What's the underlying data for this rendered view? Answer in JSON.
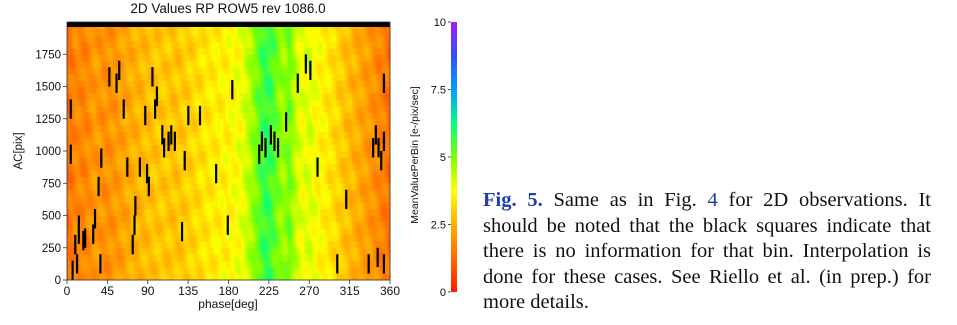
{
  "figure": {
    "title": "2D Values RP ROW5 rev 1086.0",
    "xlabel": "phase[deg]",
    "ylabel": "AC[pix]",
    "colorbar_label": "MeanValuePerBin [e-/pix/sec]"
  },
  "caption": {
    "label": "Fig. 5.",
    "text_before_ref": "Same as in Fig.",
    "ref": "4",
    "text_after_ref": "for 2D observations. It should be noted that the black squares indicate that there is no information for that bin. Interpolation is done for these cases. See Riello et al. (in prep.) for more details."
  },
  "chart_data": {
    "type": "heatmap",
    "title": "2D Values RP ROW5 rev 1086.0",
    "xlabel": "phase[deg]",
    "ylabel": "AC[pix]",
    "colorbar_label": "MeanValuePerBin [e-/pix/sec]",
    "xlim": [
      0,
      360
    ],
    "ylim": [
      0,
      2000
    ],
    "x_ticks": [
      0,
      45,
      90,
      135,
      180,
      225,
      270,
      315,
      360
    ],
    "x_tick_labels": [
      "0",
      "45",
      "90",
      "135",
      "180",
      "225",
      "270",
      "315",
      "360"
    ],
    "y_ticks": [
      0,
      250,
      500,
      750,
      1000,
      1250,
      1500,
      1750
    ],
    "y_tick_labels": [
      "0",
      "250",
      "500",
      "750",
      "1000",
      "1250",
      "1500",
      "1750"
    ],
    "colorbar_range": [
      0,
      10
    ],
    "colorbar_ticks": [
      0,
      2.5,
      5,
      7.5,
      10
    ],
    "colorbar_tick_labels": [
      "0",
      "2.5",
      "5",
      "7.5",
      "10"
    ],
    "colorscale": [
      "#ff1a00",
      "#ff6a00",
      "#ffb000",
      "#ffff00",
      "#7fff00",
      "#00ff80",
      "#00a0ff",
      "#3050ff",
      "#a020f0"
    ],
    "column_profile": [
      [
        0,
        1.3
      ],
      [
        10,
        1.8
      ],
      [
        20,
        1.7
      ],
      [
        30,
        2.1
      ],
      [
        45,
        1.9
      ],
      [
        60,
        2.2
      ],
      [
        75,
        2.5
      ],
      [
        90,
        2.7
      ],
      [
        105,
        2.9
      ],
      [
        120,
        2.8
      ],
      [
        135,
        3.0
      ],
      [
        150,
        3.3
      ],
      [
        165,
        3.5
      ],
      [
        180,
        3.6
      ],
      [
        195,
        3.9
      ],
      [
        205,
        4.6
      ],
      [
        215,
        5.4
      ],
      [
        222,
        5.8
      ],
      [
        228,
        5.6
      ],
      [
        235,
        5.0
      ],
      [
        242,
        4.7
      ],
      [
        248,
        5.2
      ],
      [
        255,
        4.3
      ],
      [
        262,
        3.9
      ],
      [
        270,
        4.1
      ],
      [
        280,
        3.7
      ],
      [
        295,
        3.3
      ],
      [
        310,
        2.8
      ],
      [
        325,
        2.4
      ],
      [
        340,
        2.0
      ],
      [
        350,
        1.7
      ],
      [
        360,
        1.4
      ]
    ],
    "missing_bins": [
      {
        "x": 3,
        "y": 900
      },
      {
        "x": 3,
        "y": 1250
      },
      {
        "x": 5,
        "y": 0
      },
      {
        "x": 8,
        "y": 200
      },
      {
        "x": 10,
        "y": 50
      },
      {
        "x": 12,
        "y": 280
      },
      {
        "x": 12,
        "y": 350
      },
      {
        "x": 17,
        "y": 230
      },
      {
        "x": 19,
        "y": 250
      },
      {
        "x": 28,
        "y": 280
      },
      {
        "x": 30,
        "y": 400
      },
      {
        "x": 34,
        "y": 650
      },
      {
        "x": 36,
        "y": 50
      },
      {
        "x": 37,
        "y": 870
      },
      {
        "x": 46,
        "y": 1500
      },
      {
        "x": 54,
        "y": 1450
      },
      {
        "x": 57,
        "y": 1550
      },
      {
        "x": 62,
        "y": 1250
      },
      {
        "x": 66,
        "y": 800
      },
      {
        "x": 72,
        "y": 200
      },
      {
        "x": 74,
        "y": 350
      },
      {
        "x": 75,
        "y": 500
      },
      {
        "x": 80,
        "y": 800
      },
      {
        "x": 86,
        "y": 1200
      },
      {
        "x": 88,
        "y": 750
      },
      {
        "x": 90,
        "y": 650
      },
      {
        "x": 94,
        "y": 1500
      },
      {
        "x": 97,
        "y": 1250
      },
      {
        "x": 99,
        "y": 1350
      },
      {
        "x": 105,
        "y": 1050
      },
      {
        "x": 107,
        "y": 950
      },
      {
        "x": 112,
        "y": 1000
      },
      {
        "x": 115,
        "y": 1050
      },
      {
        "x": 119,
        "y": 1000
      },
      {
        "x": 127,
        "y": 300
      },
      {
        "x": 130,
        "y": 850
      },
      {
        "x": 134,
        "y": 1200
      },
      {
        "x": 147,
        "y": 1200
      },
      {
        "x": 165,
        "y": 750
      },
      {
        "x": 178,
        "y": 350
      },
      {
        "x": 183,
        "y": 1400
      },
      {
        "x": 213,
        "y": 900
      },
      {
        "x": 216,
        "y": 1000
      },
      {
        "x": 220,
        "y": 950
      },
      {
        "x": 226,
        "y": 1050
      },
      {
        "x": 230,
        "y": 1000
      },
      {
        "x": 234,
        "y": 950
      },
      {
        "x": 243,
        "y": 1150
      },
      {
        "x": 256,
        "y": 1450
      },
      {
        "x": 265,
        "y": 1600
      },
      {
        "x": 270,
        "y": 1550
      },
      {
        "x": 278,
        "y": 800
      },
      {
        "x": 300,
        "y": 50
      },
      {
        "x": 310,
        "y": 550
      },
      {
        "x": 340,
        "y": 950
      },
      {
        "x": 343,
        "y": 1050
      },
      {
        "x": 346,
        "y": 950
      },
      {
        "x": 349,
        "y": 850
      },
      {
        "x": 352,
        "y": 1000
      },
      {
        "x": 352,
        "y": 1450
      },
      {
        "x": 335,
        "y": 50
      },
      {
        "x": 345,
        "y": 100
      },
      {
        "x": 352,
        "y": 50
      }
    ],
    "grid": false,
    "legend": "colorbar-right"
  }
}
